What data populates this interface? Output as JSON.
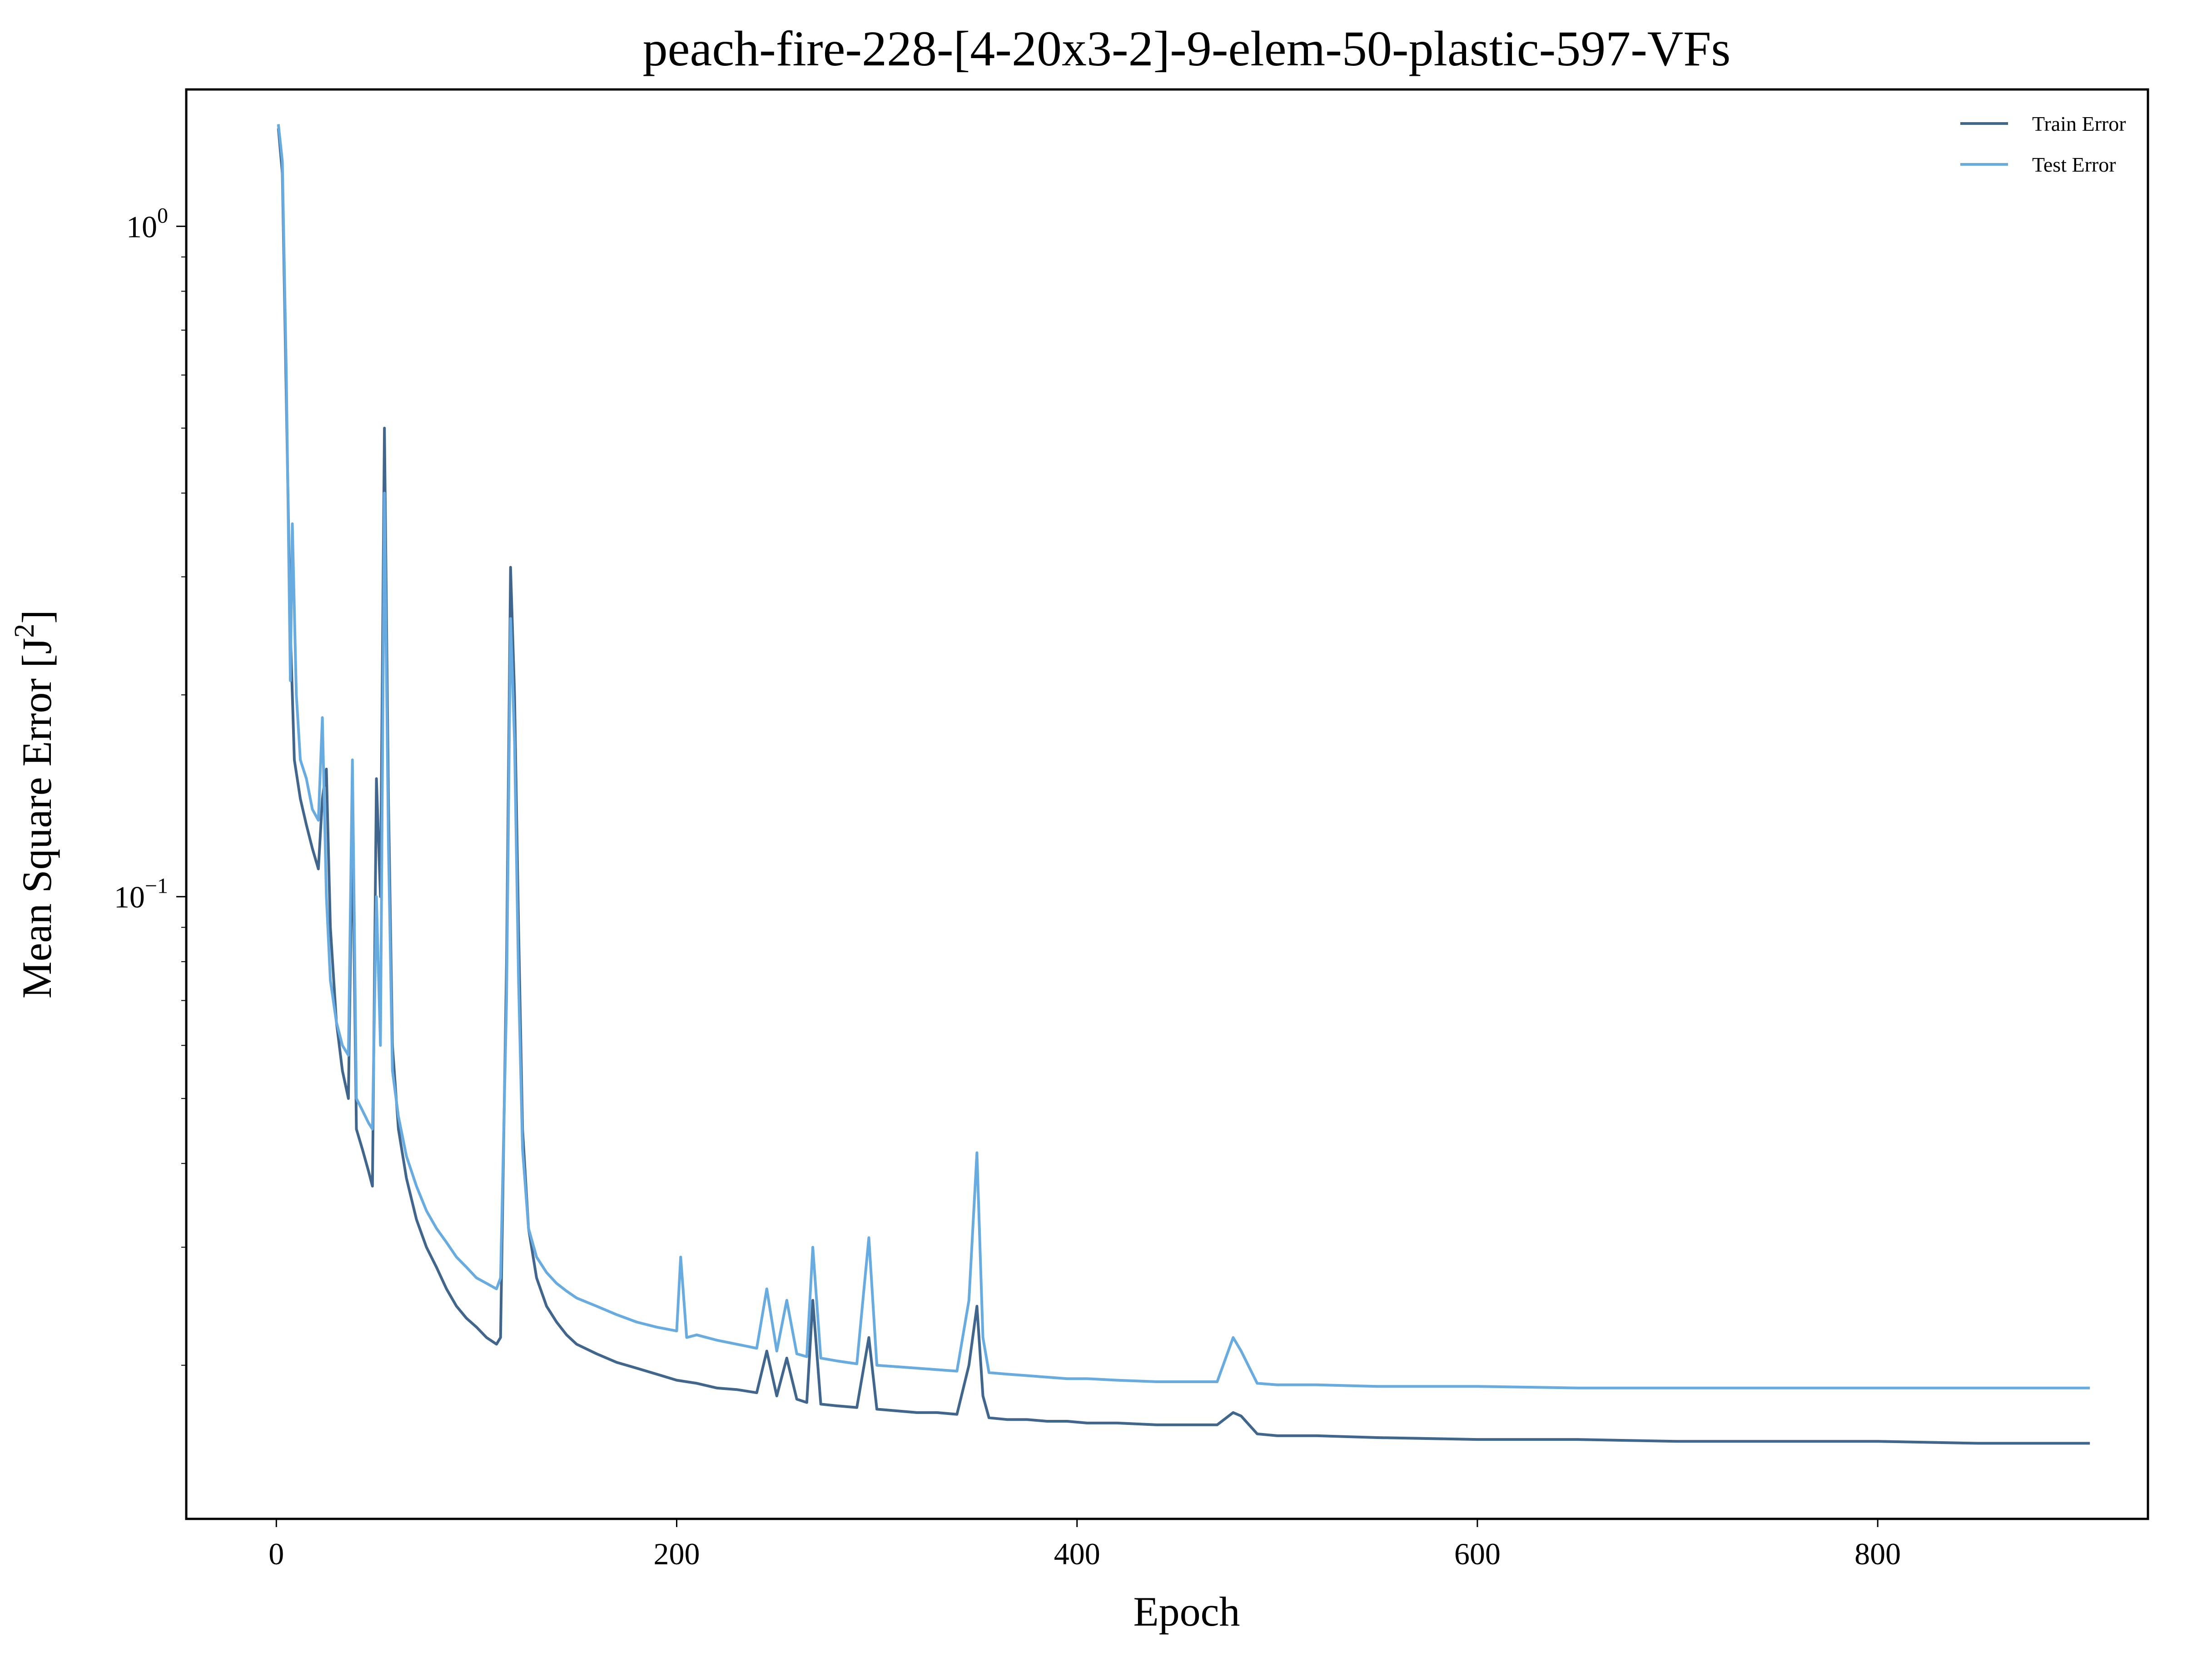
{
  "chart_data": {
    "type": "line",
    "title": "peach-fire-228-[4-20x3-2]-9-elem-50-plastic-597-VFs",
    "xlabel": "Epoch",
    "ylabel": "Mean Square Error [J",
    "ylabel_superscript": "2",
    "ylabel_suffix": "]",
    "xlim": [
      -45,
      935
    ],
    "ylim": [
      0.0118,
      1.6
    ],
    "yscale": "log",
    "grid": false,
    "legend": "top-right",
    "x_ticks": [
      0,
      200,
      400,
      600,
      800
    ],
    "y_ticks": [
      {
        "value": 1.0,
        "base": "10",
        "exp": "0"
      },
      {
        "value": 0.1,
        "base": "10",
        "exp": "−1"
      }
    ],
    "series": [
      {
        "name": "Train Error",
        "color": "#41668e",
        "points": [
          [
            1,
            1.4
          ],
          [
            3,
            1.2
          ],
          [
            5,
            0.55
          ],
          [
            7,
            0.25
          ],
          [
            9,
            0.16
          ],
          [
            12,
            0.14
          ],
          [
            15,
            0.128
          ],
          [
            18,
            0.118
          ],
          [
            21,
            0.11
          ],
          [
            23,
            0.14
          ],
          [
            25,
            0.155
          ],
          [
            27,
            0.09
          ],
          [
            30,
            0.065
          ],
          [
            33,
            0.055
          ],
          [
            36,
            0.05
          ],
          [
            38,
            0.13
          ],
          [
            40,
            0.045
          ],
          [
            43,
            0.042
          ],
          [
            46,
            0.039
          ],
          [
            48,
            0.037
          ],
          [
            50,
            0.15
          ],
          [
            52,
            0.1
          ],
          [
            54,
            0.5
          ],
          [
            56,
            0.14
          ],
          [
            58,
            0.06
          ],
          [
            61,
            0.045
          ],
          [
            65,
            0.038
          ],
          [
            70,
            0.033
          ],
          [
            75,
            0.03
          ],
          [
            80,
            0.028
          ],
          [
            85,
            0.026
          ],
          [
            90,
            0.0245
          ],
          [
            95,
            0.0235
          ],
          [
            100,
            0.0228
          ],
          [
            105,
            0.022
          ],
          [
            110,
            0.0215
          ],
          [
            112,
            0.022
          ],
          [
            115,
            0.08
          ],
          [
            117,
            0.31
          ],
          [
            119,
            0.2
          ],
          [
            121,
            0.09
          ],
          [
            123,
            0.045
          ],
          [
            126,
            0.032
          ],
          [
            130,
            0.027
          ],
          [
            135,
            0.0245
          ],
          [
            140,
            0.0232
          ],
          [
            145,
            0.0222
          ],
          [
            150,
            0.0215
          ],
          [
            160,
            0.0208
          ],
          [
            170,
            0.0202
          ],
          [
            180,
            0.0198
          ],
          [
            190,
            0.0194
          ],
          [
            200,
            0.019
          ],
          [
            210,
            0.0188
          ],
          [
            220,
            0.0185
          ],
          [
            230,
            0.0184
          ],
          [
            240,
            0.0182
          ],
          [
            245,
            0.021
          ],
          [
            250,
            0.018
          ],
          [
            255,
            0.0205
          ],
          [
            260,
            0.0178
          ],
          [
            265,
            0.0176
          ],
          [
            268,
            0.025
          ],
          [
            272,
            0.0175
          ],
          [
            280,
            0.0174
          ],
          [
            290,
            0.0173
          ],
          [
            296,
            0.022
          ],
          [
            300,
            0.0172
          ],
          [
            310,
            0.0171
          ],
          [
            320,
            0.017
          ],
          [
            330,
            0.017
          ],
          [
            340,
            0.0169
          ],
          [
            346,
            0.02
          ],
          [
            350,
            0.0245
          ],
          [
            353,
            0.018
          ],
          [
            356,
            0.0167
          ],
          [
            365,
            0.0166
          ],
          [
            375,
            0.0166
          ],
          [
            385,
            0.0165
          ],
          [
            395,
            0.0165
          ],
          [
            405,
            0.0164
          ],
          [
            420,
            0.0164
          ],
          [
            440,
            0.0163
          ],
          [
            460,
            0.0163
          ],
          [
            470,
            0.0163
          ],
          [
            478,
            0.017
          ],
          [
            482,
            0.0168
          ],
          [
            490,
            0.0158
          ],
          [
            500,
            0.0157
          ],
          [
            520,
            0.0157
          ],
          [
            550,
            0.0156
          ],
          [
            600,
            0.0155
          ],
          [
            650,
            0.0155
          ],
          [
            700,
            0.0154
          ],
          [
            750,
            0.0154
          ],
          [
            800,
            0.0154
          ],
          [
            850,
            0.0153
          ],
          [
            906,
            0.0153
          ]
        ]
      },
      {
        "name": "Test Error",
        "color": "#67abe0",
        "points": [
          [
            1,
            1.42
          ],
          [
            3,
            1.25
          ],
          [
            5,
            0.6
          ],
          [
            7,
            0.21
          ],
          [
            8,
            0.36
          ],
          [
            10,
            0.2
          ],
          [
            12,
            0.16
          ],
          [
            15,
            0.15
          ],
          [
            18,
            0.135
          ],
          [
            21,
            0.13
          ],
          [
            23,
            0.185
          ],
          [
            25,
            0.1
          ],
          [
            27,
            0.075
          ],
          [
            30,
            0.065
          ],
          [
            33,
            0.06
          ],
          [
            36,
            0.058
          ],
          [
            38,
            0.16
          ],
          [
            40,
            0.05
          ],
          [
            43,
            0.048
          ],
          [
            46,
            0.046
          ],
          [
            48,
            0.045
          ],
          [
            50,
            0.1
          ],
          [
            52,
            0.06
          ],
          [
            54,
            0.4
          ],
          [
            56,
            0.12
          ],
          [
            58,
            0.055
          ],
          [
            61,
            0.047
          ],
          [
            65,
            0.041
          ],
          [
            70,
            0.037
          ],
          [
            75,
            0.034
          ],
          [
            80,
            0.032
          ],
          [
            85,
            0.0305
          ],
          [
            90,
            0.029
          ],
          [
            95,
            0.028
          ],
          [
            100,
            0.027
          ],
          [
            105,
            0.0265
          ],
          [
            110,
            0.026
          ],
          [
            112,
            0.027
          ],
          [
            115,
            0.07
          ],
          [
            117,
            0.26
          ],
          [
            119,
            0.17
          ],
          [
            121,
            0.075
          ],
          [
            123,
            0.042
          ],
          [
            126,
            0.032
          ],
          [
            130,
            0.029
          ],
          [
            135,
            0.0275
          ],
          [
            140,
            0.0265
          ],
          [
            145,
            0.0258
          ],
          [
            150,
            0.0252
          ],
          [
            160,
            0.0245
          ],
          [
            170,
            0.0238
          ],
          [
            180,
            0.0232
          ],
          [
            190,
            0.0228
          ],
          [
            200,
            0.0225
          ],
          [
            202,
            0.029
          ],
          [
            205,
            0.022
          ],
          [
            210,
            0.0222
          ],
          [
            220,
            0.0218
          ],
          [
            230,
            0.0215
          ],
          [
            240,
            0.0212
          ],
          [
            245,
            0.026
          ],
          [
            250,
            0.021
          ],
          [
            255,
            0.025
          ],
          [
            260,
            0.0208
          ],
          [
            265,
            0.0206
          ],
          [
            268,
            0.03
          ],
          [
            272,
            0.0205
          ],
          [
            280,
            0.0203
          ],
          [
            290,
            0.0201
          ],
          [
            296,
            0.031
          ],
          [
            300,
            0.02
          ],
          [
            310,
            0.0199
          ],
          [
            320,
            0.0198
          ],
          [
            330,
            0.0197
          ],
          [
            340,
            0.0196
          ],
          [
            346,
            0.025
          ],
          [
            350,
            0.0415
          ],
          [
            353,
            0.022
          ],
          [
            356,
            0.0195
          ],
          [
            365,
            0.0194
          ],
          [
            375,
            0.0193
          ],
          [
            385,
            0.0192
          ],
          [
            395,
            0.0191
          ],
          [
            405,
            0.0191
          ],
          [
            420,
            0.019
          ],
          [
            440,
            0.0189
          ],
          [
            460,
            0.0189
          ],
          [
            470,
            0.0189
          ],
          [
            478,
            0.022
          ],
          [
            482,
            0.021
          ],
          [
            490,
            0.0188
          ],
          [
            500,
            0.0187
          ],
          [
            520,
            0.0187
          ],
          [
            550,
            0.0186
          ],
          [
            600,
            0.0186
          ],
          [
            650,
            0.0185
          ],
          [
            700,
            0.0185
          ],
          [
            750,
            0.0185
          ],
          [
            800,
            0.0185
          ],
          [
            850,
            0.0185
          ],
          [
            906,
            0.0185
          ]
        ]
      }
    ]
  }
}
